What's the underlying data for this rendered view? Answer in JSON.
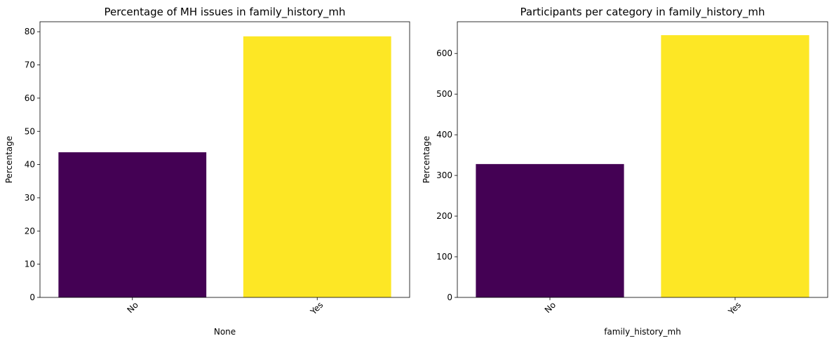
{
  "chart_data": [
    {
      "type": "bar",
      "title": "Percentage of MH issues in family_history_mh",
      "xlabel": "None",
      "ylabel": "Percentage",
      "categories": [
        "No",
        "Yes"
      ],
      "values": [
        43.7,
        78.6
      ],
      "colors": [
        "#440154",
        "#fde725"
      ],
      "ylim": [
        0,
        83
      ],
      "yticks": [
        0,
        10,
        20,
        30,
        40,
        50,
        60,
        70,
        80
      ],
      "grid": false,
      "xtick_rotation": 45
    },
    {
      "type": "bar",
      "title": "Participants per category in family_history_mh",
      "xlabel": "family_history_mh",
      "ylabel": "Percentage",
      "categories": [
        "No",
        "Yes"
      ],
      "values": [
        328,
        645
      ],
      "colors": [
        "#440154",
        "#fde725"
      ],
      "ylim": [
        0,
        678
      ],
      "yticks": [
        0,
        100,
        200,
        300,
        400,
        500,
        600
      ],
      "grid": false,
      "xtick_rotation": 45
    }
  ]
}
